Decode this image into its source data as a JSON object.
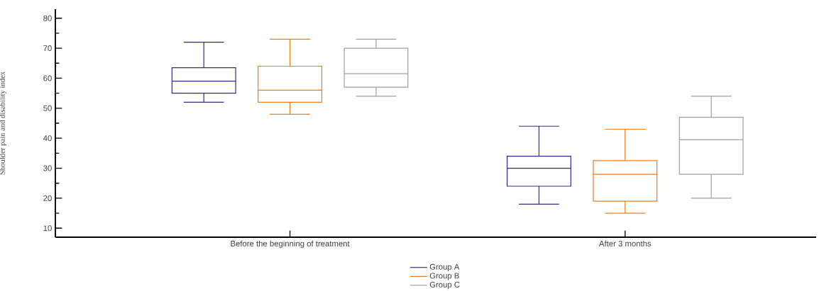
{
  "chart_data": {
    "type": "box",
    "ylabel": "Shoulder pain and disability index",
    "categories": [
      "Before the beginning of treatment",
      "After 3 months"
    ],
    "ylim": [
      7,
      83
    ],
    "yticks": [
      10,
      {
        "value": 15,
        "label": null
      },
      20,
      {
        "value": 25,
        "label": null
      },
      30,
      {
        "value": 35,
        "label": null
      },
      40,
      {
        "value": 45,
        "label": null
      },
      50,
      {
        "value": 55,
        "label": null
      },
      60,
      {
        "value": 65,
        "label": null
      },
      70,
      {
        "value": 75,
        "label": null
      },
      80
    ],
    "legend": "bottom",
    "series": [
      {
        "name": "Group A",
        "color": "#2e2e8a",
        "boxes": [
          {
            "low": 52,
            "q1": 55,
            "median": 59,
            "q3": 63.5,
            "high": 72
          },
          {
            "low": 18,
            "q1": 24,
            "median": 30,
            "q3": 34,
            "high": 44
          }
        ]
      },
      {
        "name": "Group B",
        "color": "#f07c1a",
        "boxes": [
          {
            "low": 48,
            "q1": 52,
            "median": 56,
            "q3": 64,
            "high": 73
          },
          {
            "low": 15,
            "q1": 19,
            "median": 28,
            "q3": 32.5,
            "high": 43
          }
        ]
      },
      {
        "name": "Group C",
        "color": "#a0a0a0",
        "boxes": [
          {
            "low": 54,
            "q1": 57,
            "median": 61.5,
            "q3": 70,
            "high": 73
          },
          {
            "low": 20,
            "q1": 28,
            "median": 39.5,
            "q3": 47,
            "high": 54
          }
        ]
      }
    ]
  }
}
